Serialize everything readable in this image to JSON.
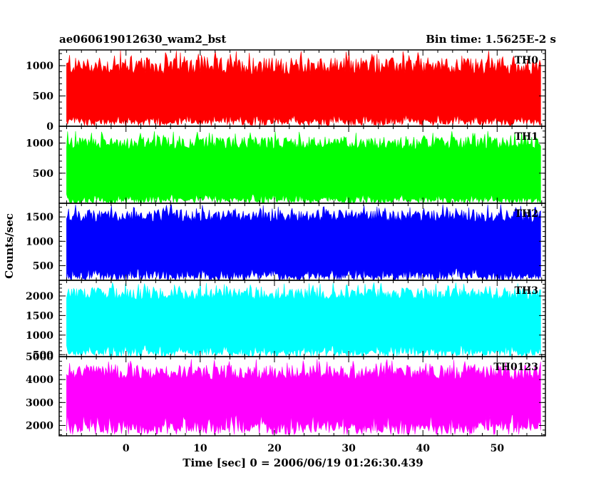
{
  "chart_data": {
    "type": "line",
    "title_left": "ae060619012630_wam2_bst",
    "title_right": "Bin time: 1.5625E-2 s",
    "xlabel": "Time [sec] 0 = 2006/06/19 01:26:30.439",
    "ylabel": "Counts/sec",
    "xlim": [
      -9,
      56.5
    ],
    "x_ticks": [
      0,
      10,
      20,
      30,
      40,
      50
    ],
    "x_tick_labels": [
      "0",
      "10",
      "20",
      "30",
      "40",
      "50"
    ],
    "data_x_range": [
      -8,
      56
    ],
    "grid": false,
    "panels": [
      {
        "name": "TH0",
        "color": "#ff0000",
        "ylim": [
          0,
          1260
        ],
        "y_ticks": [
          0,
          500,
          1000
        ],
        "y_tick_labels": [
          "0",
          "500",
          "1000"
        ],
        "lower_envelope": [
          10,
          200
        ],
        "upper_envelope": [
          850,
          1260
        ],
        "mean": 600
      },
      {
        "name": "TH1",
        "color": "#00ff00",
        "ylim": [
          0,
          1280
        ],
        "y_ticks": [
          500,
          1000
        ],
        "y_tick_labels": [
          "500",
          "1000"
        ],
        "lower_envelope": [
          0,
          150
        ],
        "upper_envelope": [
          900,
          1200
        ],
        "mean": 560
      },
      {
        "name": "TH2",
        "color": "#0000ff",
        "ylim": [
          200,
          1780
        ],
        "y_ticks": [
          500,
          1000,
          1500
        ],
        "y_tick_labels": [
          "500",
          "1000",
          "1500"
        ],
        "lower_envelope": [
          200,
          450
        ],
        "upper_envelope": [
          1400,
          1760
        ],
        "mean": 950
      },
      {
        "name": "TH3",
        "color": "#00ffff",
        "ylim": [
          450,
          2400
        ],
        "y_ticks": [
          500,
          1000,
          1500,
          2000
        ],
        "y_tick_labels": [
          "500",
          "1000",
          "1500",
          "2000"
        ],
        "lower_envelope": [
          450,
          750
        ],
        "upper_envelope": [
          1900,
          2350
        ],
        "mean": 1400
      },
      {
        "name": "TH0123",
        "color": "#ff00ff",
        "ylim": [
          1550,
          5000
        ],
        "y_ticks": [
          2000,
          3000,
          4000,
          5000
        ],
        "y_tick_labels": [
          "2000",
          "3000",
          "4000",
          "5000"
        ],
        "lower_envelope": [
          1600,
          2500
        ],
        "upper_envelope": [
          4000,
          4900
        ],
        "mean": 3300
      }
    ]
  }
}
